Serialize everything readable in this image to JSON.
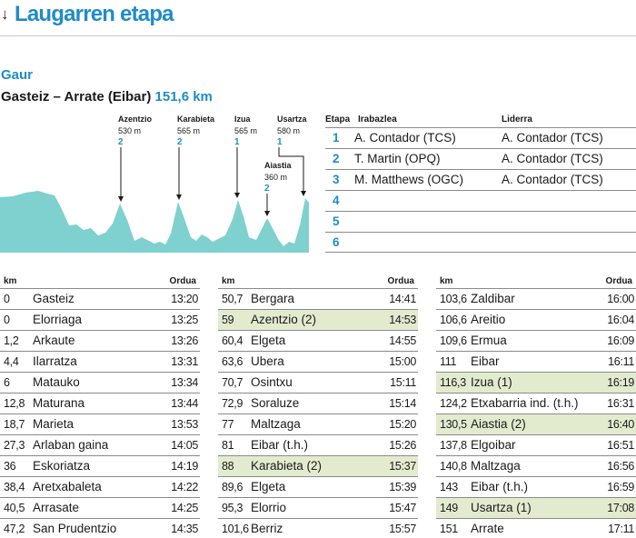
{
  "header": {
    "arrow": "↓",
    "title": "Laugarren etapa"
  },
  "day_label": "Gaur",
  "route": {
    "name": "Gasteiz – Arrate (Eibar)",
    "distance": "151,6 km"
  },
  "climbs": [
    {
      "name": "Azentzio",
      "alt": "530 m",
      "cat": "2"
    },
    {
      "name": "Karabieta",
      "alt": "565 m",
      "cat": "2"
    },
    {
      "name": "Izua",
      "alt": "565 m",
      "cat": "1"
    },
    {
      "name": "Usartza",
      "alt": "580 m",
      "cat": "1"
    },
    {
      "name": "Aiastia",
      "alt": "360 m",
      "cat": "2"
    }
  ],
  "etapa_table": {
    "headers": {
      "etapa": "Etapa",
      "winner": "Irabazlea",
      "leader": "Liderra"
    },
    "rows": [
      {
        "num": "1",
        "winner": "A. Contador (TCS)",
        "leader": "A. Contador (TCS)"
      },
      {
        "num": "2",
        "winner": "T. Martin (OPQ)",
        "leader": "A. Contador (TCS)"
      },
      {
        "num": "3",
        "winner": "M. Matthews (OGC)",
        "leader": "A. Contador (TCS)"
      },
      {
        "num": "4",
        "winner": "",
        "leader": ""
      },
      {
        "num": "5",
        "winner": "",
        "leader": ""
      },
      {
        "num": "6",
        "winner": "",
        "leader": ""
      }
    ]
  },
  "schedule": {
    "headers": {
      "km": "km",
      "time": "Ordua"
    },
    "columns": [
      [
        {
          "km": "0",
          "place": "Gasteiz",
          "time": "13:20",
          "highlight": false
        },
        {
          "km": "0",
          "place": "Elorriaga",
          "time": "13:25",
          "highlight": false
        },
        {
          "km": "1,2",
          "place": "Arkaute",
          "time": "13:26",
          "highlight": false
        },
        {
          "km": "4,4",
          "place": "Ilarratza",
          "time": "13:31",
          "highlight": false
        },
        {
          "km": "6",
          "place": "Matauko",
          "time": "13:34",
          "highlight": false
        },
        {
          "km": "12,8",
          "place": "Maturana",
          "time": "13:44",
          "highlight": false
        },
        {
          "km": "18,7",
          "place": "Marieta",
          "time": "13:53",
          "highlight": false
        },
        {
          "km": "27,3",
          "place": "Arlaban gaina",
          "time": "14:05",
          "highlight": false
        },
        {
          "km": "36",
          "place": "Eskoriatza",
          "time": "14:19",
          "highlight": false
        },
        {
          "km": "38,4",
          "place": "Aretxabaleta",
          "time": "14:22",
          "highlight": false
        },
        {
          "km": "40,5",
          "place": "Arrasate",
          "time": "14:25",
          "highlight": false
        },
        {
          "km": "47,2",
          "place": "San Prudentzio",
          "time": "14:35",
          "highlight": false
        }
      ],
      [
        {
          "km": "50,7",
          "place": "Bergara",
          "time": "14:41",
          "highlight": false
        },
        {
          "km": "59",
          "place": "Azentzio (2)",
          "time": "14:53",
          "highlight": true
        },
        {
          "km": "60,4",
          "place": "Elgeta",
          "time": "14:55",
          "highlight": false
        },
        {
          "km": "63,6",
          "place": "Ubera",
          "time": "15:00",
          "highlight": false
        },
        {
          "km": "70,7",
          "place": "Osintxu",
          "time": "15:11",
          "highlight": false
        },
        {
          "km": "72,9",
          "place": "Soraluze",
          "time": "15:14",
          "highlight": false
        },
        {
          "km": "77",
          "place": "Maltzaga",
          "time": "15:20",
          "highlight": false
        },
        {
          "km": "81",
          "place": "Eibar (t.h.)",
          "time": "15:26",
          "highlight": false
        },
        {
          "km": "88",
          "place": "Karabieta (2)",
          "time": "15:37",
          "highlight": true
        },
        {
          "km": "89,6",
          "place": "Elgeta",
          "time": "15:39",
          "highlight": false
        },
        {
          "km": "95,3",
          "place": "Elorrio",
          "time": "15:47",
          "highlight": false
        },
        {
          "km": "101,6",
          "place": "Berriz",
          "time": "15:57",
          "highlight": false
        }
      ],
      [
        {
          "km": "103,6",
          "place": "Zaldibar",
          "time": "16:00",
          "highlight": false
        },
        {
          "km": "106,6",
          "place": "Areitio",
          "time": "16:04",
          "highlight": false
        },
        {
          "km": "109,6",
          "place": "Ermua",
          "time": "16:09",
          "highlight": false
        },
        {
          "km": "111",
          "place": "Eibar",
          "time": "16:11",
          "highlight": false
        },
        {
          "km": "116,3",
          "place": "Izua (1)",
          "time": "16:19",
          "highlight": true
        },
        {
          "km": "124,2",
          "place": "Etxabarria ind. (t.h.)",
          "time": "16:31",
          "highlight": false
        },
        {
          "km": "130,5",
          "place": "Aiastia (2)",
          "time": "16:40",
          "highlight": true
        },
        {
          "km": "137,8",
          "place": "Elgoibar",
          "time": "16:51",
          "highlight": false
        },
        {
          "km": "140,8",
          "place": "Maltzaga",
          "time": "16:56",
          "highlight": false
        },
        {
          "km": "143",
          "place": "Eibar (t.h.)",
          "time": "16:59",
          "highlight": false
        },
        {
          "km": "149",
          "place": "Usartza (1)",
          "time": "17:08",
          "highlight": true
        },
        {
          "km": "151",
          "place": "Arrate",
          "time": "17:11",
          "highlight": false
        }
      ]
    ]
  },
  "colors": {
    "accent": "#1f8cc8",
    "profile_fill": "#7fd1cf",
    "highlight": "#e3ebcf"
  }
}
